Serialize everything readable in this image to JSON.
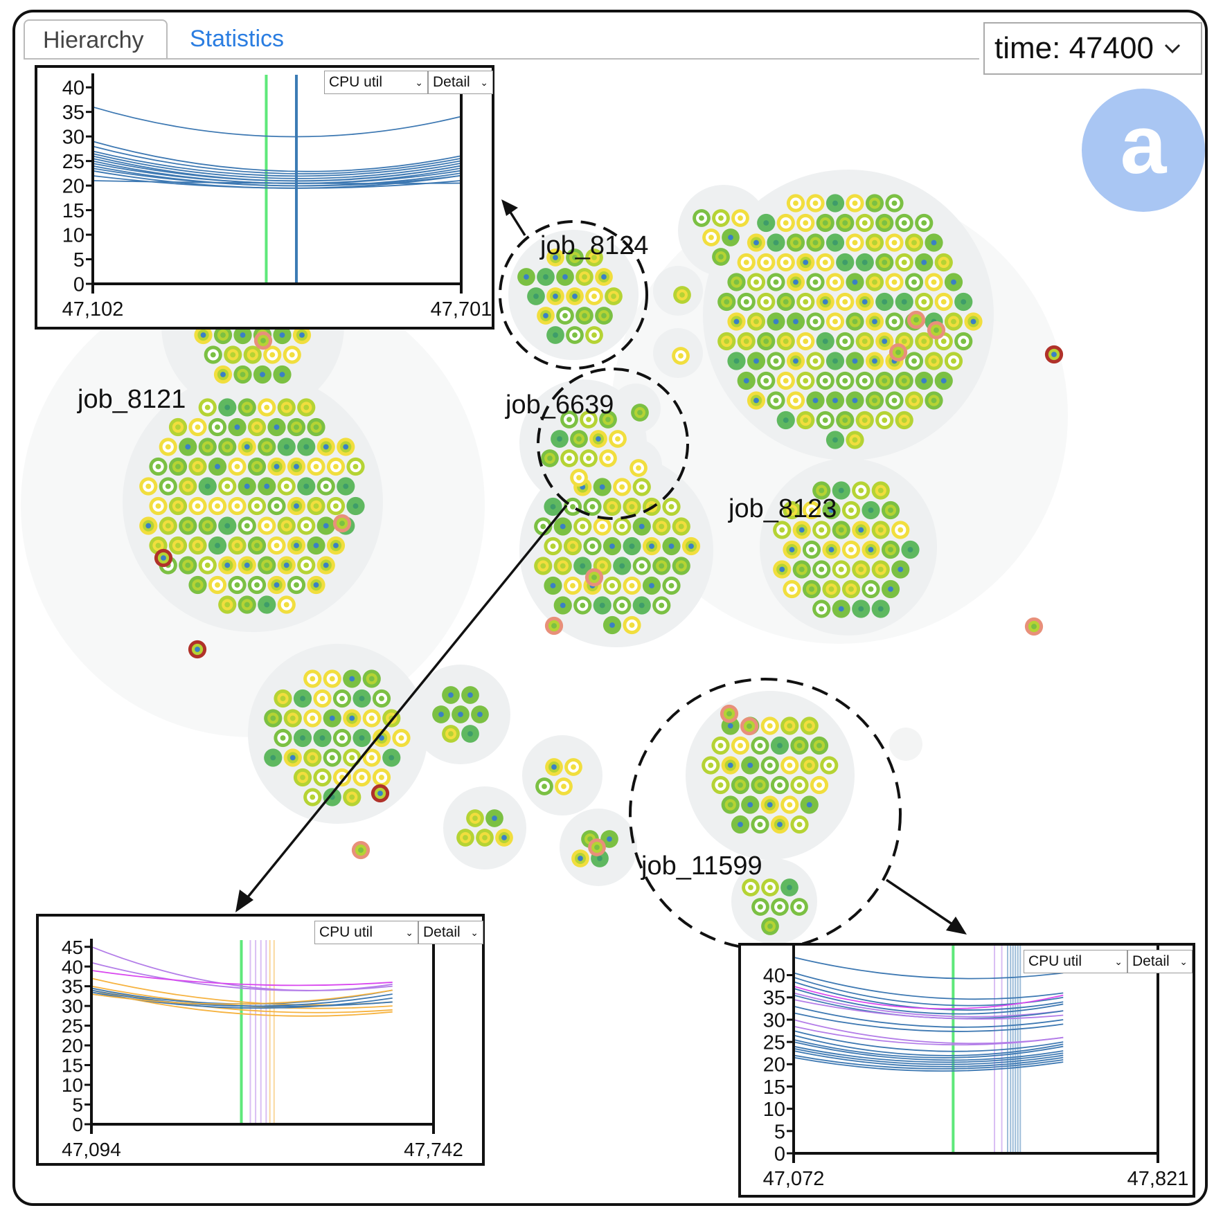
{
  "tabs": {
    "hierarchy": "Hierarchy",
    "statistics": "Statistics"
  },
  "time_select": {
    "label": "time: 47400"
  },
  "badge": "a",
  "jobs": {
    "job_8121": "job_8121",
    "job_8124": "job_8124",
    "job_6639": "job_6639",
    "job_8123": "job_8123",
    "job_11599": "job_11599"
  },
  "colors": {
    "background_circle": "#f2f3f4",
    "node_green": "#7bc043",
    "node_lime": "#b5d334",
    "node_yellow": "#f1de3e",
    "node_core_blue": "#3a80c4",
    "node_alert_red": "#b0322a",
    "node_alert_salmon": "#e8907a",
    "marker_green": "#5ee87a",
    "marker_blue": "#3b7bb4",
    "line_blue": "#3d78b2",
    "line_magenta": "#d946ef",
    "line_violet": "#b37de8",
    "line_orange": "#f6b23e"
  },
  "chart_data": [
    {
      "type": "line",
      "job": "job_8124",
      "metric": "CPU util",
      "mode": "Detail",
      "x_ticks": [
        "47,102",
        "47,701"
      ],
      "xlim": [
        47102,
        47701
      ],
      "y_ticks": [
        0,
        5,
        10,
        15,
        20,
        25,
        30,
        35,
        40
      ],
      "ylim": [
        0,
        42
      ],
      "markers": [
        {
          "x": 47384,
          "color": "marker_green"
        },
        {
          "x": 47433,
          "color": "marker_blue"
        }
      ],
      "series": [
        {
          "color": "line_blue",
          "values": [
            36,
            30,
            34
          ]
        },
        {
          "color": "line_blue",
          "values": [
            29,
            23,
            26
          ]
        },
        {
          "color": "line_blue",
          "values": [
            28,
            22.5,
            25.5
          ]
        },
        {
          "color": "line_blue",
          "values": [
            27,
            22,
            25
          ]
        },
        {
          "color": "line_blue",
          "values": [
            26.5,
            21.5,
            24.5
          ]
        },
        {
          "color": "line_blue",
          "values": [
            26,
            21,
            24
          ]
        },
        {
          "color": "line_blue",
          "values": [
            25.5,
            21,
            24
          ]
        },
        {
          "color": "line_blue",
          "values": [
            25,
            20.5,
            23.5
          ]
        },
        {
          "color": "line_blue",
          "values": [
            24.5,
            20.5,
            23
          ]
        },
        {
          "color": "line_blue",
          "values": [
            24,
            20,
            22.5
          ]
        },
        {
          "color": "line_blue",
          "values": [
            23.5,
            20,
            22
          ]
        },
        {
          "color": "line_blue",
          "values": [
            23,
            19.5,
            22
          ]
        },
        {
          "color": "line_blue",
          "values": [
            22,
            19.5,
            21
          ]
        },
        {
          "color": "line_blue",
          "values": [
            21,
            20.5,
            20.5
          ]
        }
      ]
    },
    {
      "type": "line",
      "job": "job_6639",
      "metric": "CPU util",
      "mode": "Detail",
      "x_ticks": [
        "47,094",
        "47,742"
      ],
      "xlim": [
        47094,
        47742
      ],
      "y_ticks": [
        0,
        5,
        10,
        15,
        20,
        25,
        30,
        35,
        40,
        45
      ],
      "ylim": [
        0,
        46
      ],
      "markers": [
        {
          "x": 47378,
          "color": "marker_green"
        },
        {
          "x": 47395,
          "color": "line_violet",
          "faint": true
        },
        {
          "x": 47405,
          "color": "line_violet",
          "faint": true
        },
        {
          "x": 47415,
          "color": "line_violet",
          "faint": true
        },
        {
          "x": 47425,
          "color": "line_violet",
          "faint": true
        },
        {
          "x": 47432,
          "color": "line_orange",
          "faint": true
        },
        {
          "x": 47440,
          "color": "line_orange",
          "faint": true
        }
      ],
      "series": [
        {
          "color": "line_violet",
          "values": [
            45,
            35,
            35.5
          ]
        },
        {
          "color": "line_violet",
          "values": [
            41,
            34.5,
            35
          ]
        },
        {
          "color": "line_magenta",
          "values": [
            39,
            35.5,
            36
          ]
        },
        {
          "color": "line_orange",
          "values": [
            37,
            31,
            31
          ]
        },
        {
          "color": "line_orange",
          "values": [
            35,
            30,
            30
          ]
        },
        {
          "color": "line_orange",
          "values": [
            34.5,
            29,
            29
          ]
        },
        {
          "color": "line_orange",
          "values": [
            34,
            28,
            28.5
          ]
        },
        {
          "color": "line_blue",
          "values": [
            34.5,
            30.5,
            34
          ]
        },
        {
          "color": "line_blue",
          "values": [
            34,
            30,
            33
          ]
        },
        {
          "color": "line_blue",
          "values": [
            33.5,
            29.5,
            32
          ]
        },
        {
          "color": "line_blue",
          "values": [
            33,
            30,
            31
          ]
        },
        {
          "color": "line_orange",
          "values": [
            33,
            30.5,
            34
          ]
        }
      ]
    },
    {
      "type": "line",
      "job": "job_11599",
      "metric": "CPU util",
      "mode": "Detail",
      "x_ticks": [
        "47,072",
        "47,821"
      ],
      "xlim": [
        47072,
        47821
      ],
      "y_ticks": [
        0,
        5,
        10,
        15,
        20,
        25,
        30,
        35,
        40
      ],
      "ylim": [
        0,
        46
      ],
      "markers": [
        {
          "x": 47400,
          "color": "marker_green"
        },
        {
          "x": 47485,
          "color": "line_violet",
          "faint": true
        },
        {
          "x": 47500,
          "color": "line_violet",
          "faint": true
        },
        {
          "x": 47512,
          "color": "marker_blue",
          "faint": true
        },
        {
          "x": 47518,
          "color": "marker_blue",
          "faint": true
        },
        {
          "x": 47523,
          "color": "marker_blue",
          "faint": true
        },
        {
          "x": 47528,
          "color": "marker_blue",
          "faint": true
        },
        {
          "x": 47533,
          "color": "marker_blue",
          "faint": true
        },
        {
          "x": 47538,
          "color": "marker_blue",
          "faint": true
        }
      ],
      "series": [
        {
          "color": "line_blue",
          "values": [
            44,
            39.5,
            40.5
          ]
        },
        {
          "color": "line_blue",
          "values": [
            40.5,
            35,
            36
          ]
        },
        {
          "color": "line_blue",
          "values": [
            39.5,
            33.5,
            35
          ]
        },
        {
          "color": "line_blue",
          "values": [
            38.5,
            32.5,
            34
          ]
        },
        {
          "color": "line_magenta",
          "values": [
            37.5,
            32.5,
            35.5
          ]
        },
        {
          "color": "line_blue",
          "values": [
            37,
            31.5,
            33.5
          ]
        },
        {
          "color": "line_violet",
          "values": [
            36,
            31,
            32
          ]
        },
        {
          "color": "line_blue",
          "values": [
            35.5,
            30.5,
            32
          ]
        },
        {
          "color": "line_violet",
          "values": [
            34.5,
            30.5,
            31
          ]
        },
        {
          "color": "line_blue",
          "values": [
            33,
            28.5,
            30
          ]
        },
        {
          "color": "line_blue",
          "values": [
            31.5,
            27.5,
            29
          ]
        },
        {
          "color": "line_violet",
          "values": [
            30,
            25,
            26
          ]
        },
        {
          "color": "line_violet",
          "values": [
            28.5,
            24.5,
            26
          ]
        },
        {
          "color": "line_blue",
          "values": [
            27.5,
            23,
            25
          ]
        },
        {
          "color": "line_blue",
          "values": [
            26.5,
            22,
            24.5
          ]
        },
        {
          "color": "line_blue",
          "values": [
            25.5,
            21.5,
            24
          ]
        },
        {
          "color": "line_blue",
          "values": [
            25,
            21,
            23
          ]
        },
        {
          "color": "line_blue",
          "values": [
            24,
            20.5,
            22.5
          ]
        },
        {
          "color": "line_blue",
          "values": [
            23.5,
            20,
            22
          ]
        },
        {
          "color": "line_blue",
          "values": [
            23,
            19.5,
            21.5
          ]
        },
        {
          "color": "line_blue",
          "values": [
            22,
            19,
            21
          ]
        },
        {
          "color": "line_blue",
          "values": [
            21.5,
            18.5,
            20.5
          ]
        }
      ]
    }
  ]
}
